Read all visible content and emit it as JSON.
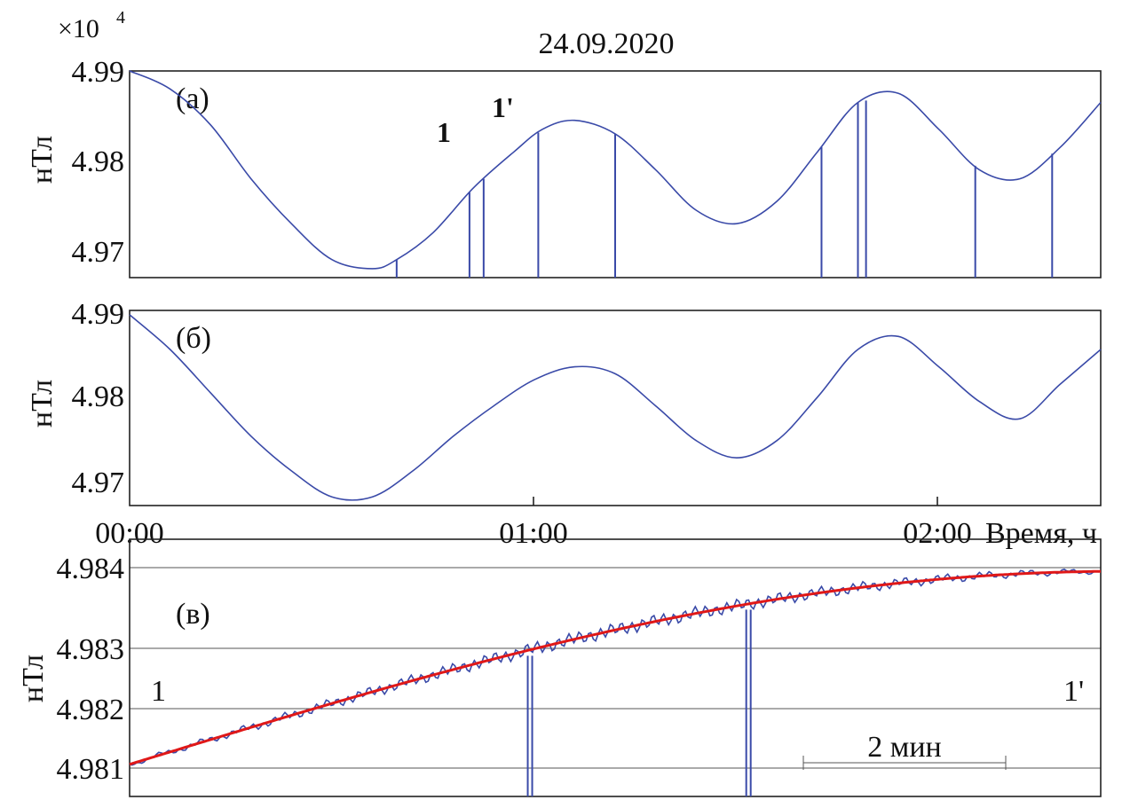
{
  "figure": {
    "title": "24.09.2020",
    "scale_factor": "×10",
    "scale_exponent": "4",
    "scale_bar_label": "2 мин"
  },
  "chart_data": [
    {
      "type": "line",
      "panel_label": "(а)",
      "ylabel": "нТл",
      "yticks": [
        "4.99",
        "4.98",
        "4.97"
      ],
      "ylim": [
        4.967,
        4.99
      ],
      "xlim_hours": [
        0,
        2.4
      ],
      "x_hours": [
        0,
        0.1,
        0.2,
        0.3,
        0.4,
        0.5,
        0.6,
        0.66,
        0.75,
        0.85,
        0.95,
        1.02,
        1.1,
        1.2,
        1.3,
        1.4,
        1.5,
        1.6,
        1.7,
        1.8,
        1.9,
        2.0,
        2.1,
        2.2,
        2.3,
        2.4
      ],
      "values": [
        4.99,
        4.988,
        4.984,
        4.978,
        4.973,
        4.969,
        4.968,
        4.969,
        4.972,
        4.977,
        4.981,
        4.9835,
        4.9845,
        4.983,
        4.979,
        4.9745,
        4.973,
        4.9755,
        4.981,
        4.9865,
        4.9875,
        4.9835,
        4.979,
        4.978,
        4.9815,
        4.9865
      ],
      "markers": [
        {
          "label": "1",
          "x": 0.84
        },
        {
          "label": "1'",
          "x": 0.875
        }
      ],
      "dropout_x_hours": [
        0.66,
        0.84,
        0.875,
        1.01,
        1.2,
        1.71,
        1.8,
        1.82,
        2.09,
        2.28
      ]
    },
    {
      "type": "line",
      "panel_label": "(б)",
      "ylabel": "нТл",
      "yticks": [
        "4.99",
        "4.98",
        "4.97"
      ],
      "ylim": [
        4.968,
        4.9905
      ],
      "xticks": [
        "00:00",
        "01:00",
        "02:00"
      ],
      "xlabel": "Время, ч",
      "x_hours": [
        0,
        0.1,
        0.2,
        0.3,
        0.4,
        0.5,
        0.6,
        0.7,
        0.8,
        0.9,
        1.0,
        1.1,
        1.2,
        1.3,
        1.4,
        1.5,
        1.6,
        1.7,
        1.8,
        1.9,
        2.0,
        2.1,
        2.2,
        2.3,
        2.4
      ],
      "values": [
        4.99,
        4.986,
        4.981,
        4.976,
        4.972,
        4.969,
        4.969,
        4.972,
        4.976,
        4.9795,
        4.9825,
        4.984,
        4.9832,
        4.9795,
        4.9755,
        4.9735,
        4.9755,
        4.9805,
        4.986,
        4.9875,
        4.984,
        4.98,
        4.978,
        4.982,
        4.986
      ]
    },
    {
      "type": "line",
      "panel_label": "(в)",
      "ylabel": "нТл",
      "yticks": [
        "4.984",
        "4.983",
        "4.982",
        "4.981"
      ],
      "ylim": [
        4.9805,
        4.9845
      ],
      "grid": true,
      "series": [
        {
          "role": "measured",
          "color": "#3a4aa8"
        },
        {
          "role": "fit",
          "color": "#e01818"
        }
      ],
      "fit_start": 4.981,
      "fit_end": 4.984,
      "start_label": "1",
      "end_label": "1'",
      "dropout_fraction": [
        0.41,
        0.635
      ]
    }
  ]
}
